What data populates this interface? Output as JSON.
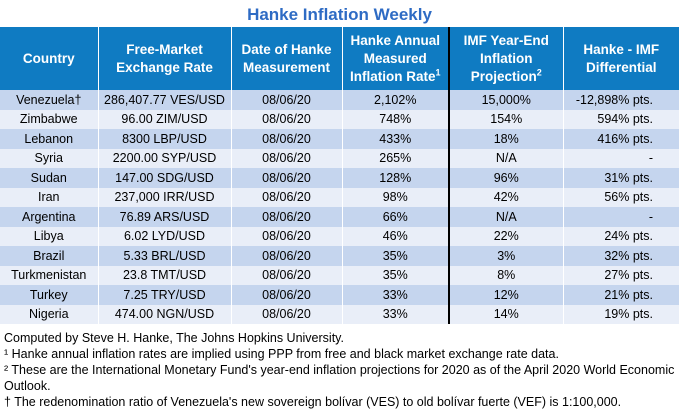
{
  "title": "Hanke Inflation Weekly",
  "headers": {
    "country": "Country",
    "rate": "Free-Market Exchange Rate",
    "date": "Date of Hanke Measurement",
    "hanke": "Hanke Annual Measured Inflation Rate",
    "hanke_sup": "1",
    "imf": "IMF Year-End Inflation Projection",
    "imf_sup": "2",
    "diff": "Hanke - IMF Differential"
  },
  "rows": [
    {
      "country": "Venezuela†",
      "rate": "286,407.77 VES/USD",
      "date": "08/06/20",
      "hanke": "2,102%",
      "imf": "15,000%",
      "diff": "-12,898% pts."
    },
    {
      "country": "Zimbabwe",
      "rate": "96.00 ZIM/USD",
      "date": "08/06/20",
      "hanke": "748%",
      "imf": "154%",
      "diff": "594% pts."
    },
    {
      "country": "Lebanon",
      "rate": "8300 LBP/USD",
      "date": "08/06/20",
      "hanke": "433%",
      "imf": "18%",
      "diff": "416% pts."
    },
    {
      "country": "Syria",
      "rate": "2200.00 SYP/USD",
      "date": "08/06/20",
      "hanke": "265%",
      "imf": "N/A",
      "diff": "-"
    },
    {
      "country": "Sudan",
      "rate": "147.00 SDG/USD",
      "date": "08/06/20",
      "hanke": "128%",
      "imf": "96%",
      "diff": "31% pts."
    },
    {
      "country": "Iran",
      "rate": "237,000 IRR/USD",
      "date": "08/06/20",
      "hanke": "98%",
      "imf": "42%",
      "diff": "56% pts."
    },
    {
      "country": "Argentina",
      "rate": "76.89 ARS/USD",
      "date": "08/06/20",
      "hanke": "66%",
      "imf": "N/A",
      "diff": "-"
    },
    {
      "country": "Libya",
      "rate": "6.02 LYD/USD",
      "date": "08/06/20",
      "hanke": "46%",
      "imf": "22%",
      "diff": "24% pts."
    },
    {
      "country": "Brazil",
      "rate": "5.33 BRL/USD",
      "date": "08/06/20",
      "hanke": "35%",
      "imf": "3%",
      "diff": "32% pts."
    },
    {
      "country": "Turkmenistan",
      "rate": "23.8 TMT/USD",
      "date": "08/06/20",
      "hanke": "35%",
      "imf": "8%",
      "diff": "27% pts."
    },
    {
      "country": "Turkey",
      "rate": "7.25 TRY/USD",
      "date": "08/06/20",
      "hanke": "33%",
      "imf": "12%",
      "diff": "21% pts."
    },
    {
      "country": "Nigeria",
      "rate": "474.00 NGN/USD",
      "date": "08/06/20",
      "hanke": "33%",
      "imf": "14%",
      "diff": "19% pts."
    }
  ],
  "notes": {
    "credit": "Computed by Steve H. Hanke, The Johns Hopkins University.",
    "note1": "¹ Hanke annual inflation rates are implied using PPP from free and black market exchange rate data.",
    "note2": "² These are the International Monetary Fund's year-end inflation projections for 2020 as of the April 2020 World Economic Outlook.",
    "note3": "† The redenomination ratio of Venezuela's new sovereign bolívar (VES) to old bolívar fuerte (VEF) is 1:100,000."
  },
  "colors": {
    "title": "#2e6bc4",
    "header_bg": "#0f7bc2",
    "row_odd": "#c5d5ee",
    "row_even": "#e9eef8"
  }
}
